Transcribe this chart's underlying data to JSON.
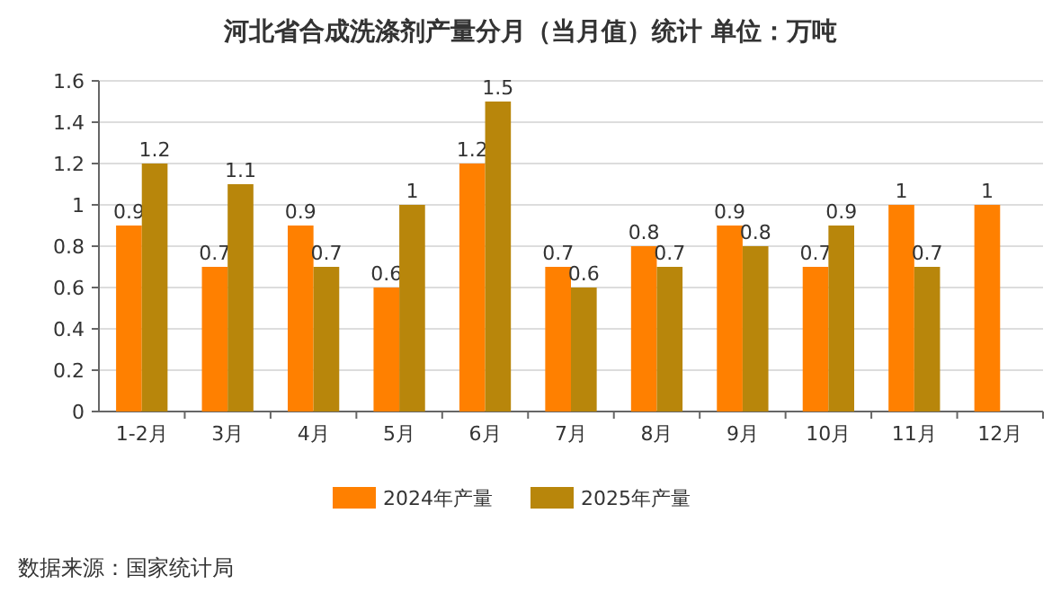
{
  "chart_data": {
    "type": "bar",
    "title": "河北省合成洗涤剂产量分月（当月值）统计  单位：万吨",
    "categories": [
      "1-2月",
      "3月",
      "4月",
      "5月",
      "6月",
      "7月",
      "8月",
      "9月",
      "10月",
      "11月",
      "12月"
    ],
    "series": [
      {
        "name": "2024年产量",
        "color": "#ff8000",
        "values": [
          0.9,
          0.7,
          0.9,
          0.6,
          1.2,
          0.7,
          0.8,
          0.9,
          0.7,
          1,
          1
        ]
      },
      {
        "name": "2025年产量",
        "color": "#b8860b",
        "values": [
          1.2,
          1.1,
          0.7,
          1,
          1.5,
          0.6,
          0.7,
          0.8,
          0.9,
          0.7,
          null
        ]
      }
    ],
    "ylim": [
      0,
      1.6
    ],
    "yticks": [
      0,
      0.2,
      0.4,
      0.6,
      0.8,
      1,
      1.2,
      1.4,
      1.6
    ],
    "grid": "y",
    "legend": "bottom",
    "data_labels": true,
    "annotations": [
      "数据来源：国家统计局"
    ]
  }
}
